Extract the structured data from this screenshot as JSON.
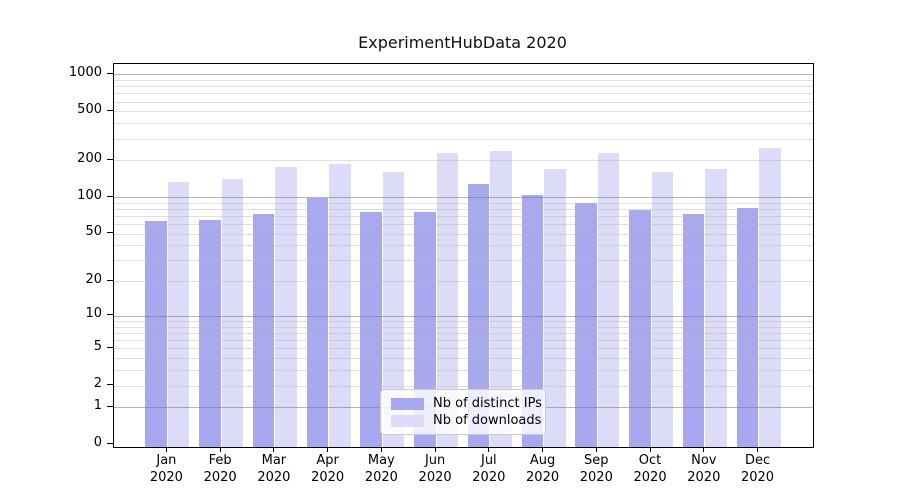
{
  "chart_data": {
    "type": "bar",
    "title": "ExperimentHubData 2020",
    "categories": [
      "Jan 2020",
      "Feb 2020",
      "Mar 2020",
      "Apr 2020",
      "May 2020",
      "Jun 2020",
      "Jul 2020",
      "Aug 2020",
      "Sep 2020",
      "Oct 2020",
      "Nov 2020",
      "Dec 2020"
    ],
    "x_tick_month": [
      "Jan",
      "Feb",
      "Mar",
      "Apr",
      "May",
      "Jun",
      "Jul",
      "Aug",
      "Sep",
      "Oct",
      "Nov",
      "Dec"
    ],
    "x_tick_year": [
      "2020",
      "2020",
      "2020",
      "2020",
      "2020",
      "2020",
      "2020",
      "2020",
      "2020",
      "2020",
      "2020",
      "2020"
    ],
    "series": [
      {
        "name": "Nb of distinct IPs",
        "color": "#a8a8f0",
        "values": [
          64,
          65,
          73,
          98,
          76,
          76,
          129,
          104,
          89,
          78,
          73,
          82
        ]
      },
      {
        "name": "Nb of downloads",
        "color": "#dcdcf8",
        "values": [
          134,
          140,
          175,
          186,
          162,
          228,
          240,
          171,
          231,
          160,
          169,
          254
        ]
      }
    ],
    "y_ticks": [
      0,
      1,
      2,
      5,
      10,
      20,
      50,
      100,
      200,
      500,
      1000
    ],
    "y_scale": "log10(value+1)",
    "ylim": [
      0,
      1230
    ],
    "grid": true,
    "legend": {
      "position": "lower center",
      "labels": [
        "Nb of distinct IPs",
        "Nb of downloads"
      ]
    }
  },
  "colors": {
    "background": "#ffffff",
    "axis": "#000000",
    "major_grid_rgba": "rgba(120,120,120,0.55)",
    "minor_grid_rgba": "rgba(185,185,185,0.45)",
    "text": "#000000"
  }
}
